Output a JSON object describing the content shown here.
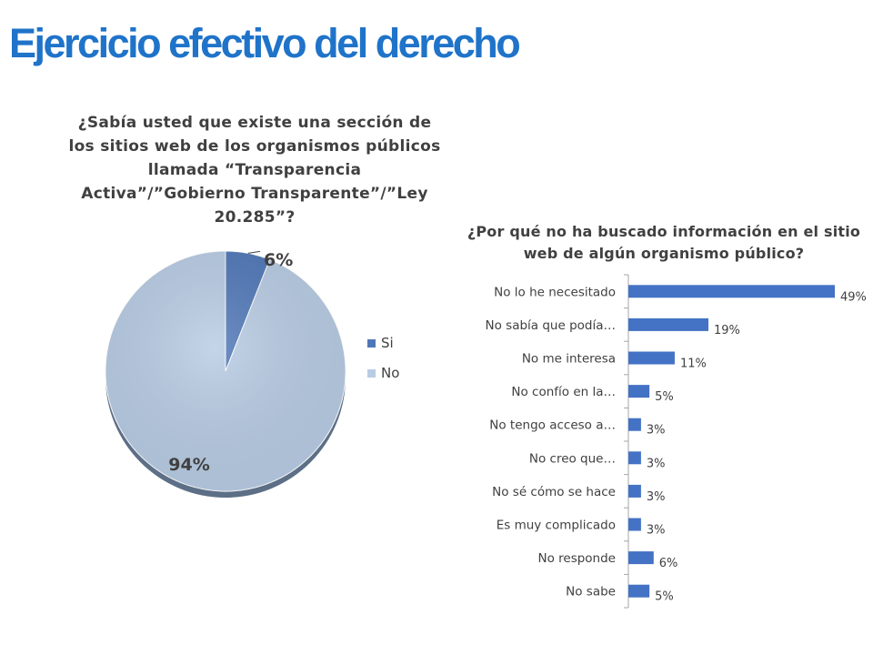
{
  "slide": {
    "title": "Ejercicio efectivo del derecho"
  },
  "chart_data": [
    {
      "type": "pie",
      "title": "¿Sabía usted que existe una sección de los sitios web de los organismos públicos llamada “Transparencia Activa”/”Gobierno Transparente”/”Ley 20.285”?",
      "categories": [
        "Si",
        "No"
      ],
      "values": [
        6,
        94
      ],
      "data_labels": [
        "6%",
        "94%"
      ],
      "colors": [
        "#4F77B8",
        "#B8CCE4"
      ],
      "legend": "right"
    },
    {
      "type": "bar",
      "orientation": "horizontal",
      "title": "¿Por qué no ha buscado información en el sitio web de algún organismo público?",
      "categories": [
        "No lo he necesitado",
        "No sabía que podía…",
        "No me interesa",
        "No confío en la…",
        "No tengo acceso a…",
        "No creo que…",
        "No sé cómo se hace",
        "Es muy complicado",
        "No responde",
        "No sabe"
      ],
      "values": [
        49,
        19,
        11,
        5,
        3,
        3,
        3,
        3,
        6,
        5
      ],
      "data_labels": [
        "49%",
        "19%",
        "11%",
        "5%",
        "3%",
        "3%",
        "3%",
        "3%",
        "6%",
        "5%"
      ],
      "xlim": [
        0,
        49
      ],
      "grid": false,
      "color": "#4472C4"
    }
  ]
}
